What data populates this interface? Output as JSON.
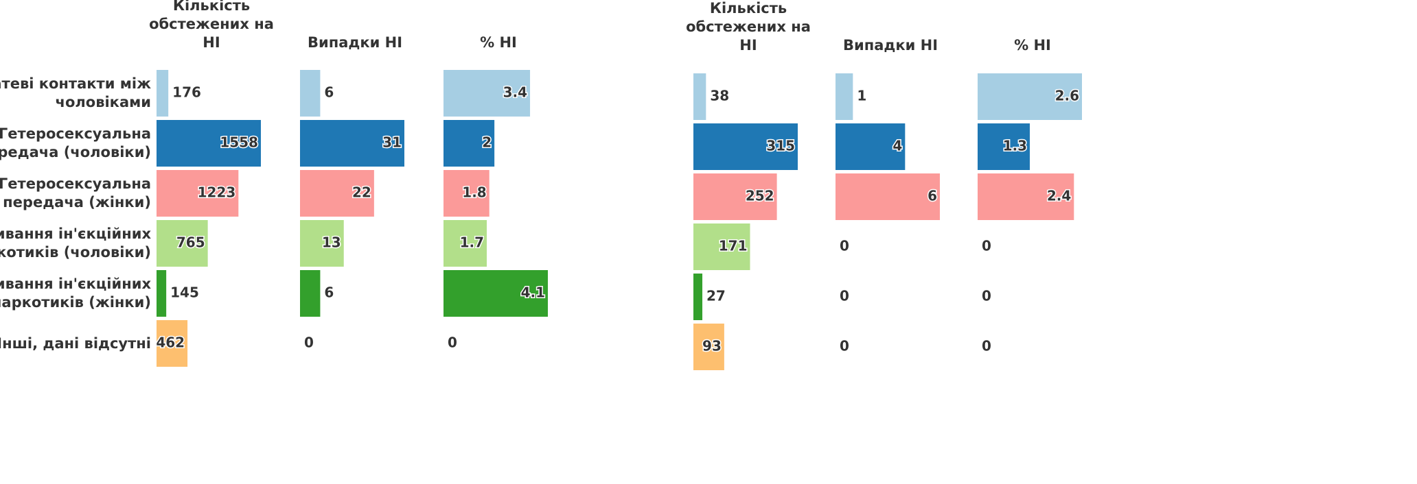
{
  "chart_data": {
    "type": "bar",
    "categories": [
      "Статеві контакти між\nчоловіками",
      "Гетеросексуальна\nпередача (чоловіки)",
      "Гетеросексуальна\nпередача (жінки)",
      "Вживання ін'єкційних\nнаркотиків (чоловіки)",
      "Вживання ін'єкційних\nнаркотиків (жінки)",
      "Інші, дані відсутні"
    ],
    "colors": [
      "#a6cee3",
      "#1f78b4",
      "#fb9a99",
      "#b2df8a",
      "#33a02c",
      "#fdbf6f"
    ],
    "series": [
      {
        "name": "Кількість\nобстежених на\nНІ",
        "values": [
          176,
          1558,
          1223,
          765,
          145,
          462
        ]
      },
      {
        "name": "Випадки НІ",
        "values": [
          6,
          31,
          22,
          13,
          6,
          0
        ]
      },
      {
        "name": "% НІ",
        "values": [
          3.4,
          2,
          1.8,
          1.7,
          4.1,
          0
        ]
      },
      {
        "name": "Кількість\nобстежених на\nНІ",
        "values": [
          38,
          315,
          252,
          171,
          27,
          93
        ]
      },
      {
        "name": "Випадки НІ",
        "values": [
          1,
          4,
          6,
          0,
          0,
          0
        ]
      },
      {
        "name": "% НІ",
        "values": [
          2.6,
          1.3,
          2.4,
          0,
          0,
          0
        ]
      }
    ]
  }
}
